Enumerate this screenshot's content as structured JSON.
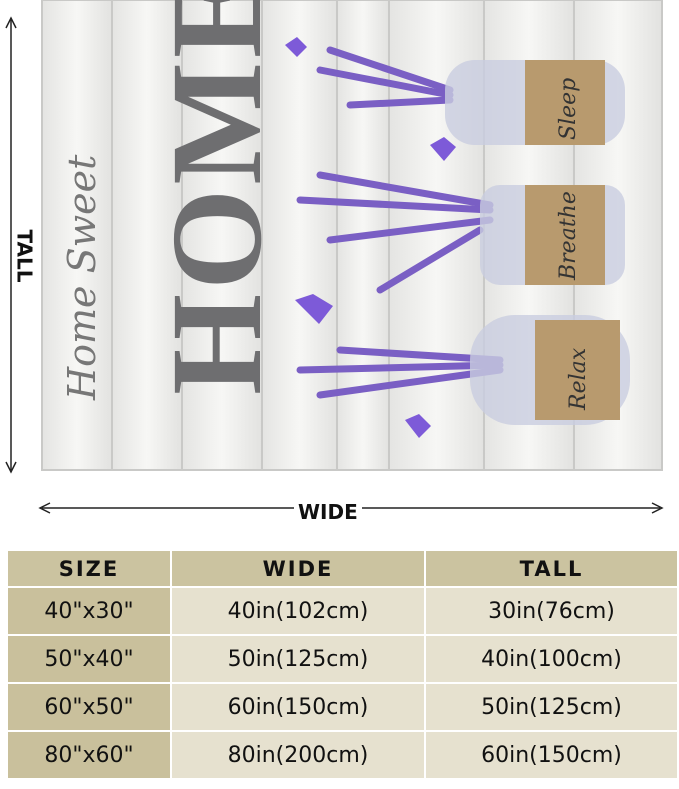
{
  "image": {
    "artwork_text": {
      "script": "Home Sweet",
      "big": "HOME",
      "jar_labels": [
        "Sleep",
        "Breathe",
        "Relax"
      ]
    },
    "dimension_labels": {
      "tall": "TALL",
      "wide": "WIDE"
    },
    "colors": {
      "lavender": "#7a5fc4",
      "wood": "#eeeeec",
      "burlap": "#b89a6e"
    }
  },
  "size_table": {
    "headers": [
      "SIZE",
      "WIDE",
      "TALL"
    ],
    "rows": [
      [
        "40\"x30\"",
        "40in(102cm)",
        "30in(76cm)"
      ],
      [
        "50\"x40\"",
        "50in(125cm)",
        "40in(100cm)"
      ],
      [
        "60\"x50\"",
        "60in(150cm)",
        "50in(125cm)"
      ],
      [
        "80\"x60\"",
        "80in(200cm)",
        "60in(150cm)"
      ]
    ],
    "colors": {
      "header": "#cbc3a0",
      "first_column": "#c9c09c",
      "cells": "#e6e1cf"
    }
  }
}
